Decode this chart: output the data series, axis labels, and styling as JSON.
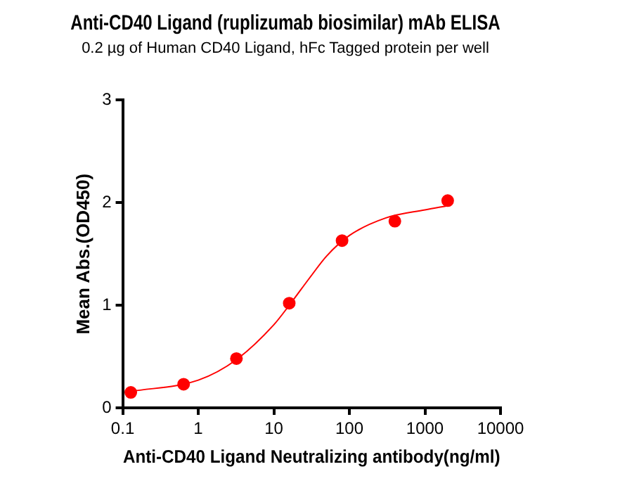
{
  "chart_data": {
    "type": "scatter",
    "title": "Anti-CD40 Ligand (ruplizumab biosimilar) mAb ELISA",
    "subtitle": "0.2 µg of Human CD40 Ligand, hFc Tagged protein per well",
    "xlabel": "Anti-CD40 Ligand Neutralizing antibody(ng/ml)",
    "ylabel": "Mean Abs.(OD450)",
    "series": [
      {
        "color": "#ff0000",
        "marker": "circle",
        "x": [
          0.128,
          0.64,
          3.2,
          16,
          80,
          400,
          2000
        ],
        "values": [
          0.15,
          0.23,
          0.48,
          1.02,
          1.63,
          1.82,
          2.02
        ]
      },
      {
        "type": "line",
        "color": "#ff0000",
        "marker": "none",
        "x": [
          0.128,
          1,
          3.2,
          10,
          16,
          30,
          50,
          100,
          300,
          1000,
          2000
        ],
        "values": [
          0.16,
          0.27,
          0.47,
          0.81,
          1.0,
          1.27,
          1.48,
          1.68,
          1.85,
          1.93,
          1.97
        ]
      }
    ],
    "log": "x",
    "xlim": [
      0.1,
      10000
    ],
    "xticks": [
      0.1,
      1,
      10,
      100,
      1000,
      10000
    ],
    "ylim": [
      0,
      3
    ],
    "yticks": [
      0,
      1,
      2,
      3
    ],
    "grid": false,
    "legend": false
  }
}
